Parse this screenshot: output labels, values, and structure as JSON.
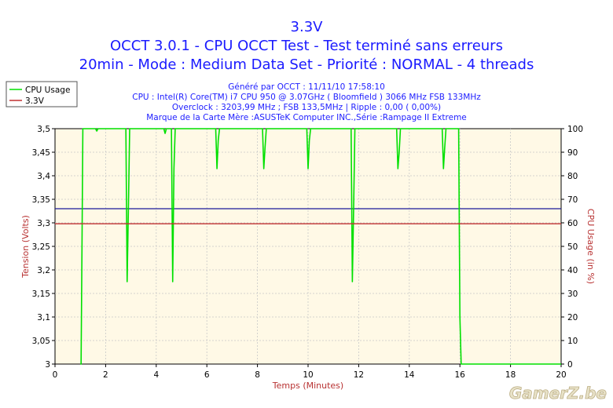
{
  "header": {
    "title": "3.3V",
    "line2": "OCCT 3.0.1 - CPU OCCT Test - Test terminé sans erreurs",
    "line3": "20min - Mode : Medium Data Set - Priorité : NORMAL - 4 threads"
  },
  "info": {
    "generated": "Généré par OCCT : 11/11/10 17:58:10",
    "cpu": "CPU : Intel(R) Core(TM) i7 CPU 950 @ 3.07GHz ( Bloomfield ) 3066 MHz FSB 133MHz",
    "overclock": "Overclock : 3203,99 MHz ; FSB 133,5MHz | Ripple : 0,00 ( 0,00%)",
    "motherboard": "Marque de la Carte Mère :ASUSTeK Computer INC.,Série :Rampage II Extreme"
  },
  "watermark": "GamerZ.be",
  "colors": {
    "cpu_usage": "#00e000",
    "v33": "#c03030",
    "threshold": "#1a1a9a",
    "plot_bg": "#fff9e6",
    "grid": "#c8c8c8"
  },
  "chart_data": {
    "type": "line",
    "title": "3.3V",
    "xlabel": "Temps (Minutes)",
    "ylabel": "Tension (Volts)",
    "y2label": "CPU Usage (in %)",
    "xlim": [
      0,
      20
    ],
    "ylim": [
      3,
      3.5
    ],
    "y2lim": [
      0,
      100
    ],
    "grid": true,
    "legend_position": "top-left",
    "x_ticks": [
      "0",
      "2",
      "4",
      "6",
      "8",
      "10",
      "12",
      "14",
      "16",
      "18",
      "20"
    ],
    "y_ticks": [
      "3",
      "3,05",
      "3,1",
      "3,15",
      "3,2",
      "3,25",
      "3,3",
      "3,35",
      "3,4",
      "3,45",
      "3,5"
    ],
    "y2_ticks": [
      "0",
      "10",
      "20",
      "30",
      "40",
      "50",
      "60",
      "70",
      "80",
      "90",
      "100"
    ],
    "series": [
      {
        "name": "CPU Usage",
        "axis": "right",
        "points": [
          [
            1.0,
            0
          ],
          [
            1.03,
            0
          ],
          [
            1.07,
            55
          ],
          [
            1.1,
            100
          ],
          [
            1.6,
            100
          ],
          [
            1.65,
            99
          ],
          [
            1.7,
            100
          ],
          [
            2.8,
            100
          ],
          [
            2.85,
            35
          ],
          [
            2.9,
            66
          ],
          [
            2.95,
            100
          ],
          [
            4.3,
            100
          ],
          [
            4.35,
            98
          ],
          [
            4.4,
            100
          ],
          [
            4.6,
            100
          ],
          [
            4.65,
            35
          ],
          [
            4.7,
            83
          ],
          [
            4.75,
            100
          ],
          [
            6.35,
            100
          ],
          [
            6.4,
            83
          ],
          [
            6.45,
            95
          ],
          [
            6.5,
            100
          ],
          [
            8.2,
            100
          ],
          [
            8.25,
            83
          ],
          [
            8.3,
            92
          ],
          [
            8.35,
            100
          ],
          [
            9.95,
            100
          ],
          [
            10.0,
            83
          ],
          [
            10.05,
            95
          ],
          [
            10.1,
            100
          ],
          [
            11.7,
            100
          ],
          [
            11.75,
            35
          ],
          [
            11.8,
            66
          ],
          [
            11.85,
            100
          ],
          [
            13.5,
            100
          ],
          [
            13.55,
            83
          ],
          [
            13.6,
            90
          ],
          [
            13.65,
            100
          ],
          [
            15.3,
            100
          ],
          [
            15.35,
            83
          ],
          [
            15.4,
            92
          ],
          [
            15.45,
            100
          ],
          [
            15.95,
            100
          ],
          [
            16.0,
            20
          ],
          [
            16.05,
            0
          ],
          [
            20.0,
            0
          ]
        ]
      },
      {
        "name": "3.3V",
        "axis": "left",
        "points": [
          [
            0,
            3.298
          ],
          [
            20,
            3.298
          ]
        ]
      }
    ],
    "reference_lines": [
      {
        "axis": "left",
        "value": 3.33
      }
    ]
  }
}
